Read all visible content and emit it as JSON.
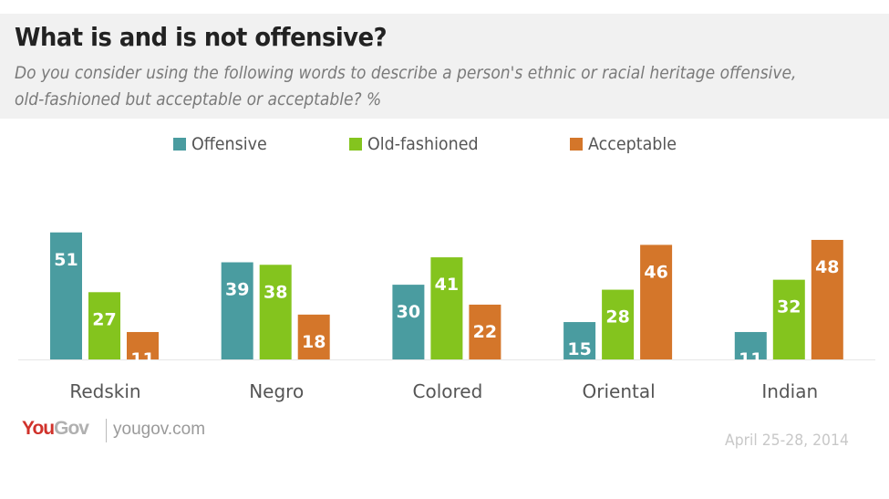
{
  "header": {
    "title": "What is and is not offensive?",
    "subtitle": "Do you consider using the following words to describe a person's ethnic or racial heritage offensive, old-fashioned but acceptable or acceptable? %"
  },
  "footer": {
    "logo_you": "You",
    "logo_gov": "Gov",
    "site": "yougov.com",
    "date": "April 25-28, 2014"
  },
  "chart_data": {
    "type": "bar",
    "title": "What is and is not offensive?",
    "subtitle": "Do you consider using the following words to describe a person's ethnic or racial heritage offensive, old-fashioned but acceptable or acceptable? %",
    "xlabel": "",
    "ylabel": "",
    "ylim": [
      0,
      55
    ],
    "grid": false,
    "legend_position": "top-center",
    "categories": [
      "Redskin",
      "Negro",
      "Colored",
      "Oriental",
      "Indian"
    ],
    "series": [
      {
        "name": "Offensive",
        "color": "#4a9ca0",
        "values": [
          51,
          39,
          30,
          15,
          11
        ]
      },
      {
        "name": "Old-fashioned",
        "color": "#84c41e",
        "values": [
          27,
          38,
          41,
          28,
          32
        ]
      },
      {
        "name": "Acceptable",
        "color": "#d4762a",
        "values": [
          11,
          18,
          22,
          46,
          48
        ]
      }
    ]
  }
}
